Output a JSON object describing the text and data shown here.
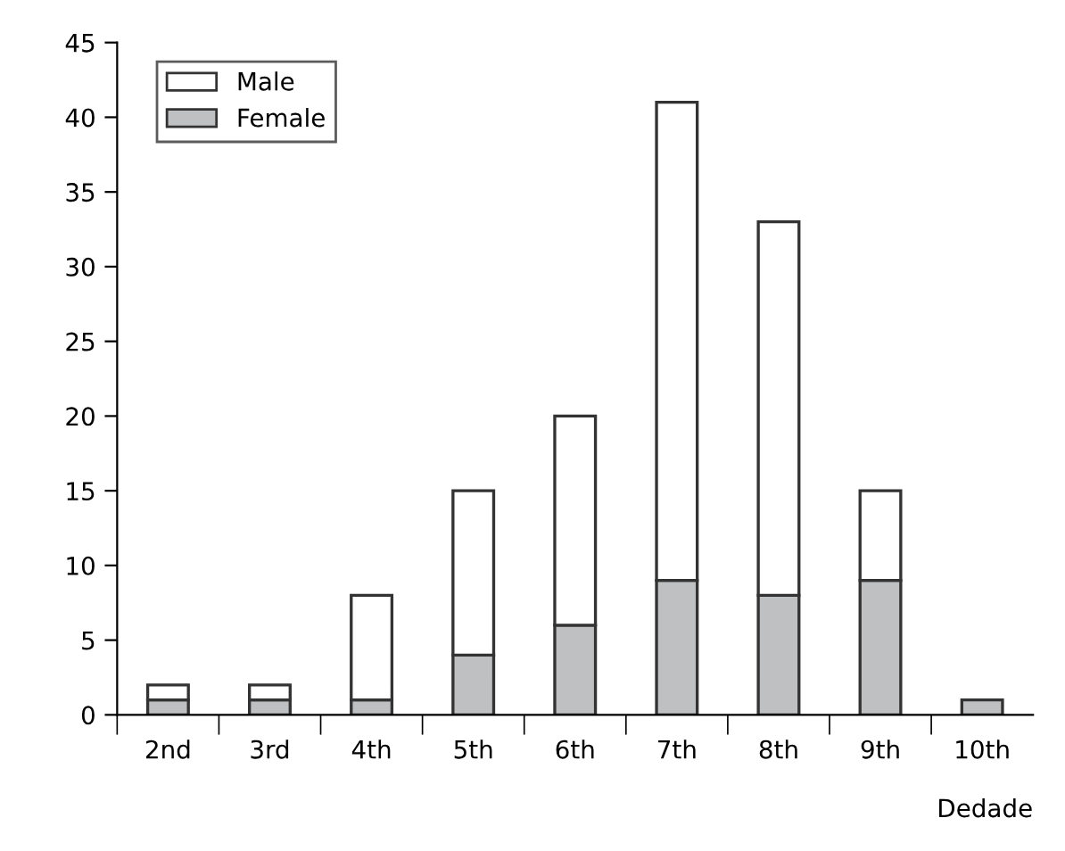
{
  "chart_data": {
    "type": "bar",
    "stacked": true,
    "xlabel": "Dedade",
    "categories": [
      "2nd",
      "3rd",
      "4th",
      "5th",
      "6th",
      "7th",
      "8th",
      "9th",
      "10th"
    ],
    "series": [
      {
        "name": "Female",
        "color": "#bfc0c2",
        "values": [
          1,
          1,
          1,
          4,
          6,
          9,
          8,
          9,
          1
        ]
      },
      {
        "name": "Male",
        "color": "#ffffff",
        "values": [
          1,
          1,
          7,
          11,
          14,
          32,
          25,
          6,
          null
        ]
      }
    ],
    "ylim": [
      0,
      45
    ],
    "yticks": [
      0,
      5,
      10,
      15,
      20,
      25,
      30,
      35,
      40,
      45
    ],
    "legend": "top left",
    "grid": false
  }
}
